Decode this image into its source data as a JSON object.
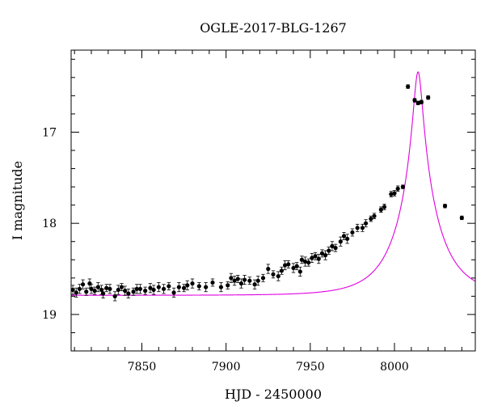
{
  "chart_data": {
    "type": "scatter",
    "title": "OGLE-2017-BLG-1267",
    "xlabel": "HJD - 2450000",
    "ylabel": "I magnitude",
    "xlim": [
      7808,
      8048
    ],
    "ylim": [
      19.4,
      16.1
    ],
    "y_inverted": true,
    "x_ticks": [
      7850,
      7900,
      7950,
      8000
    ],
    "y_ticks": [
      17,
      18,
      19
    ],
    "grid": false,
    "series": [
      {
        "kind": "points-with-errorbars",
        "color": "#000000",
        "points": [
          [
            7809,
            18.73,
            0.05
          ],
          [
            7811,
            18.76,
            0.05
          ],
          [
            7813,
            18.72,
            0.05
          ],
          [
            7815,
            18.67,
            0.05
          ],
          [
            7817,
            18.75,
            0.04
          ],
          [
            7819,
            18.66,
            0.05
          ],
          [
            7820,
            18.72,
            0.05
          ],
          [
            7822,
            18.74,
            0.04
          ],
          [
            7824,
            18.7,
            0.05
          ],
          [
            7826,
            18.73,
            0.05
          ],
          [
            7827,
            18.77,
            0.05
          ],
          [
            7829,
            18.71,
            0.04
          ],
          [
            7831,
            18.72,
            0.05
          ],
          [
            7834,
            18.8,
            0.05
          ],
          [
            7836,
            18.73,
            0.05
          ],
          [
            7838,
            18.7,
            0.04
          ],
          [
            7840,
            18.74,
            0.05
          ],
          [
            7842,
            18.77,
            0.05
          ],
          [
            7845,
            18.75,
            0.04
          ],
          [
            7847,
            18.72,
            0.05
          ],
          [
            7849,
            18.72,
            0.05
          ],
          [
            7852,
            18.74,
            0.04
          ],
          [
            7855,
            18.71,
            0.05
          ],
          [
            7857,
            18.73,
            0.05
          ],
          [
            7860,
            18.7,
            0.05
          ],
          [
            7863,
            18.72,
            0.05
          ],
          [
            7866,
            18.69,
            0.04
          ],
          [
            7869,
            18.76,
            0.05
          ],
          [
            7872,
            18.7,
            0.05
          ],
          [
            7875,
            18.71,
            0.04
          ],
          [
            7877,
            18.68,
            0.05
          ],
          [
            7880,
            18.66,
            0.05
          ],
          [
            7884,
            18.69,
            0.04
          ],
          [
            7888,
            18.7,
            0.05
          ],
          [
            7892,
            18.65,
            0.04
          ],
          [
            7897,
            18.7,
            0.05
          ],
          [
            7901,
            18.68,
            0.04
          ],
          [
            7903,
            18.6,
            0.05
          ],
          [
            7905,
            18.63,
            0.05
          ],
          [
            7907,
            18.61,
            0.04
          ],
          [
            7909,
            18.66,
            0.05
          ],
          [
            7911,
            18.62,
            0.05
          ],
          [
            7914,
            18.63,
            0.04
          ],
          [
            7917,
            18.67,
            0.05
          ],
          [
            7919,
            18.63,
            0.05
          ],
          [
            7922,
            18.6,
            0.04
          ],
          [
            7925,
            18.5,
            0.05
          ],
          [
            7928,
            18.56,
            0.04
          ],
          [
            7931,
            18.58,
            0.05
          ],
          [
            7933,
            18.52,
            0.04
          ],
          [
            7935,
            18.46,
            0.05
          ],
          [
            7937,
            18.45,
            0.04
          ],
          [
            7940,
            18.49,
            0.05
          ],
          [
            7942,
            18.47,
            0.04
          ],
          [
            7944,
            18.53,
            0.05
          ],
          [
            7945,
            18.4,
            0.04
          ],
          [
            7947,
            18.42,
            0.05
          ],
          [
            7949,
            18.43,
            0.04
          ],
          [
            7951,
            18.38,
            0.05
          ],
          [
            7953,
            18.36,
            0.04
          ],
          [
            7955,
            18.39,
            0.05
          ],
          [
            7957,
            18.33,
            0.04
          ],
          [
            7959,
            18.35,
            0.05
          ],
          [
            7961,
            18.3,
            0.04
          ],
          [
            7963,
            18.25,
            0.05
          ],
          [
            7965,
            18.27,
            0.04
          ],
          [
            7968,
            18.2,
            0.05
          ],
          [
            7970,
            18.14,
            0.04
          ],
          [
            7972,
            18.17,
            0.05
          ],
          [
            7975,
            18.1,
            0.04
          ],
          [
            7978,
            18.05,
            0.04
          ],
          [
            7981,
            18.05,
            0.04
          ],
          [
            7983,
            18.0,
            0.04
          ],
          [
            7986,
            17.95,
            0.03
          ],
          [
            7988,
            17.92,
            0.03
          ],
          [
            7992,
            17.85,
            0.03
          ],
          [
            7994,
            17.82,
            0.03
          ],
          [
            7998,
            17.68,
            0.03
          ],
          [
            8000,
            17.67,
            0.03
          ],
          [
            8002,
            17.62,
            0.03
          ],
          [
            8005,
            17.6,
            0.02
          ],
          [
            8008,
            16.5,
            0.02
          ],
          [
            8012,
            16.65,
            0.02
          ],
          [
            8014,
            16.68,
            0.02
          ],
          [
            8016,
            16.67,
            0.02
          ],
          [
            8020,
            16.62,
            0.02
          ],
          [
            8030,
            17.81,
            0.02
          ],
          [
            8040,
            17.94,
            0.02
          ]
        ]
      },
      {
        "kind": "model-curve",
        "color": "#e000e0",
        "model": {
          "baseline_mag": 18.79,
          "t0": 8014,
          "tE": 24,
          "u0": 0.105
        }
      }
    ]
  }
}
